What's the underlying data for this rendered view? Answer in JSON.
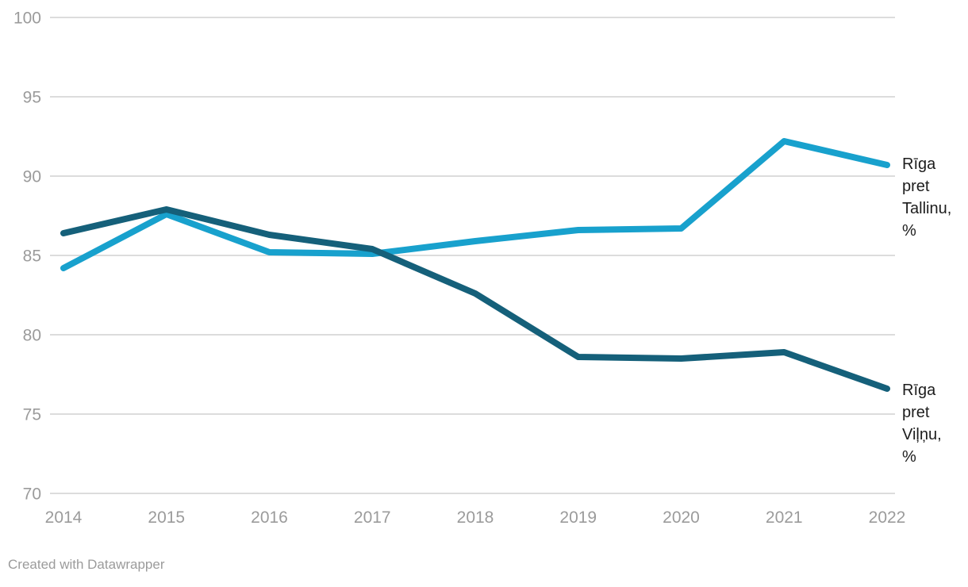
{
  "chart_data": {
    "type": "line",
    "title": "",
    "xlabel": "",
    "ylabel": "",
    "x": [
      2014,
      2015,
      2016,
      2017,
      2018,
      2019,
      2020,
      2021,
      2022
    ],
    "ylim": [
      70,
      100
    ],
    "yticks": [
      100,
      95,
      90,
      85,
      80,
      75,
      70
    ],
    "grid": true,
    "legend_position": "right-of-line-ends",
    "series": [
      {
        "name": "Rīga pret Tallinu, %",
        "slug": "tallinu",
        "label_lines": "Rīga\npret\nTallinu,\n%",
        "color": "#18a1cd",
        "values": [
          84.2,
          87.6,
          85.2,
          85.1,
          85.9,
          86.6,
          86.7,
          92.2,
          90.7
        ]
      },
      {
        "name": "Rīga pret Viļņu, %",
        "slug": "vilnu",
        "label_lines": "Rīga\npret\nViļņu,\n%",
        "color": "#15607a",
        "values": [
          86.4,
          87.9,
          86.3,
          85.4,
          82.6,
          78.6,
          78.5,
          78.9,
          76.6
        ]
      }
    ]
  },
  "footer": {
    "credit": "Created with Datawrapper"
  },
  "colors": {
    "background": "#ffffff",
    "gridline": "#dcdcdc",
    "axis_text": "#9b9b9b",
    "label_text": "#1d1d1d",
    "series_tallinu": "#18a1cd",
    "series_vilnu": "#15607a"
  }
}
